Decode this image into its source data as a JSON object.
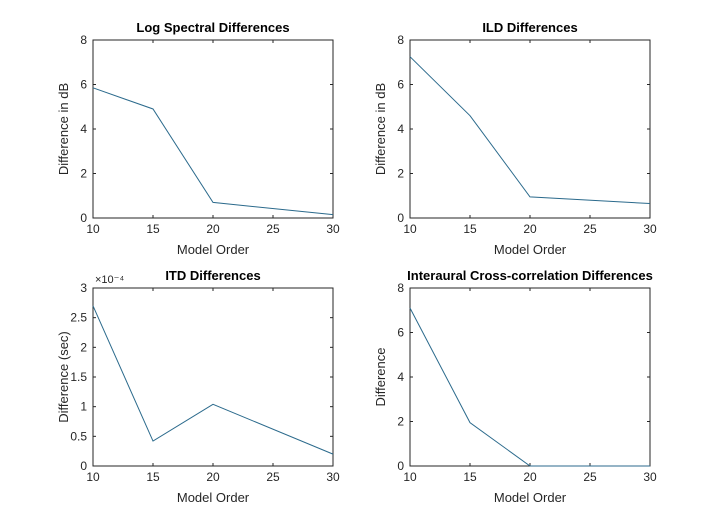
{
  "chart_data": [
    {
      "type": "line",
      "title": "Log Spectral Differences",
      "xlabel": "Model Order",
      "ylabel": "Difference in dB",
      "x": [
        10,
        15,
        20,
        30
      ],
      "y": [
        5.85,
        4.9,
        0.7,
        0.15
      ],
      "xlim": [
        10,
        30
      ],
      "ylim": [
        0,
        8
      ],
      "xticks": [
        10,
        15,
        20,
        25,
        30
      ],
      "yticks": [
        0,
        2,
        4,
        6,
        8
      ],
      "xtick_labels": [
        "10",
        "15",
        "20",
        "25",
        "30"
      ],
      "ytick_labels": [
        "0",
        "2",
        "4",
        "6",
        "8"
      ],
      "multiplier_label": "",
      "grid": false,
      "line_color": "#2b6a8c"
    },
    {
      "type": "line",
      "title": "ILD Differences",
      "xlabel": "Model Order",
      "ylabel": "Difference in dB",
      "x": [
        10,
        15,
        20,
        30
      ],
      "y": [
        7.25,
        4.6,
        0.95,
        0.65
      ],
      "xlim": [
        10,
        30
      ],
      "ylim": [
        0,
        8
      ],
      "xticks": [
        10,
        15,
        20,
        25,
        30
      ],
      "yticks": [
        0,
        2,
        4,
        6,
        8
      ],
      "xtick_labels": [
        "10",
        "15",
        "20",
        "25",
        "30"
      ],
      "ytick_labels": [
        "0",
        "2",
        "4",
        "6",
        "8"
      ],
      "multiplier_label": "",
      "grid": false,
      "line_color": "#2b6a8c"
    },
    {
      "type": "line",
      "title": "ITD Differences",
      "xlabel": "Model Order",
      "ylabel": "Difference (sec)",
      "x": [
        10,
        15,
        20,
        30
      ],
      "y": [
        0.00027,
        4.2e-05,
        0.000104,
        2e-05
      ],
      "xlim": [
        10,
        30
      ],
      "ylim": [
        0,
        0.0003
      ],
      "xticks": [
        10,
        15,
        20,
        25,
        30
      ],
      "yticks": [
        0,
        5e-05,
        0.0001,
        0.00015,
        0.0002,
        0.00025,
        0.0003
      ],
      "xtick_labels": [
        "10",
        "15",
        "20",
        "25",
        "30"
      ],
      "ytick_labels": [
        "0",
        "0.5",
        "1",
        "1.5",
        "2",
        "2.5",
        "3"
      ],
      "multiplier_label": "×10⁻⁴",
      "grid": false,
      "line_color": "#2b6a8c"
    },
    {
      "type": "line",
      "title": "Interaural Cross-correlation Differences",
      "xlabel": "Model Order",
      "ylabel": "Difference",
      "x": [
        10,
        15,
        20,
        30
      ],
      "y": [
        7.1,
        1.95,
        0.0,
        0.0
      ],
      "xlim": [
        10,
        30
      ],
      "ylim": [
        0,
        8
      ],
      "xticks": [
        10,
        15,
        20,
        25,
        30
      ],
      "yticks": [
        0,
        2,
        4,
        6,
        8
      ],
      "xtick_labels": [
        "10",
        "15",
        "20",
        "25",
        "30"
      ],
      "ytick_labels": [
        "0",
        "2",
        "4",
        "6",
        "8"
      ],
      "multiplier_label": "",
      "grid": false,
      "line_color": "#2b6a8c"
    }
  ]
}
